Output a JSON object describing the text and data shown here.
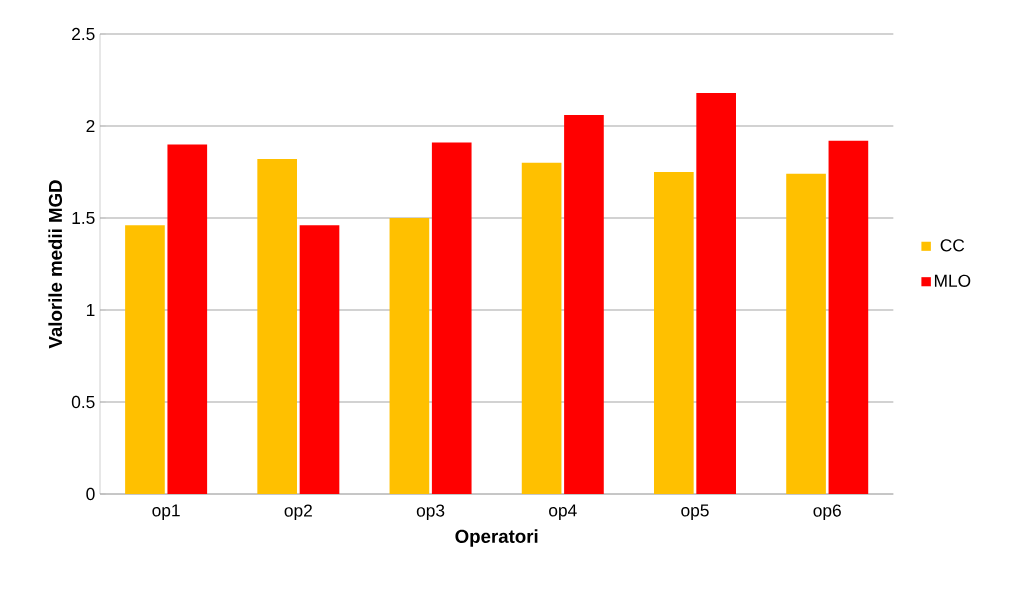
{
  "chart_data": {
    "type": "bar",
    "xlabel": "Operatori",
    "ylabel": "Valorile medii MGD",
    "categories": [
      "op1",
      "op2",
      "op3",
      "op4",
      "op5",
      "op6"
    ],
    "series": [
      {
        "name": "CC",
        "color": "#ffc000",
        "values": [
          1.46,
          1.82,
          1.5,
          1.8,
          1.75,
          1.74
        ]
      },
      {
        "name": "MLO",
        "color": "#ff0000",
        "values": [
          1.9,
          1.46,
          1.91,
          2.06,
          2.18,
          1.92
        ]
      }
    ],
    "ylim": [
      0,
      2.5
    ],
    "yticks": [
      0,
      0.5,
      1,
      1.5,
      2,
      2.5
    ],
    "grid": "y",
    "legend": "right"
  }
}
